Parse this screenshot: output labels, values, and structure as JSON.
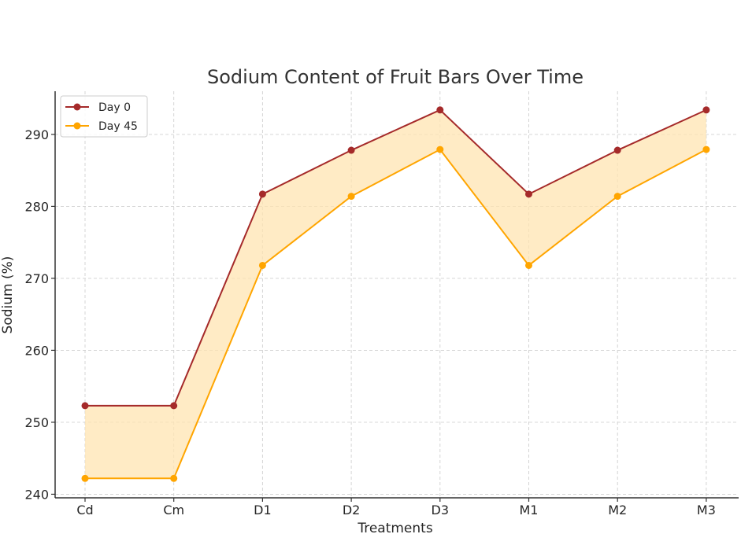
{
  "chart_data": {
    "type": "line",
    "title": "Sodium Content of Fruit Bars Over Time",
    "xlabel": "Treatments",
    "ylabel": "Sodium (%)",
    "categories": [
      "Cd",
      "Cm",
      "D1",
      "D2",
      "D3",
      "M1",
      "M2",
      "M3"
    ],
    "ylim": [
      239.5,
      296
    ],
    "yticks": [
      240,
      250,
      260,
      270,
      280,
      290
    ],
    "grid": true,
    "legend_position": "top-left",
    "fill_between": {
      "color": "#FFE4B2"
    },
    "series": [
      {
        "name": "Day 0",
        "color": "#A52A2A",
        "values": [
          252.3,
          252.3,
          281.7,
          287.8,
          293.4,
          281.7,
          287.8,
          293.4
        ]
      },
      {
        "name": "Day 45",
        "color": "#FFA500",
        "values": [
          242.2,
          242.2,
          271.8,
          281.4,
          287.9,
          271.8,
          281.4,
          287.9
        ]
      }
    ]
  }
}
